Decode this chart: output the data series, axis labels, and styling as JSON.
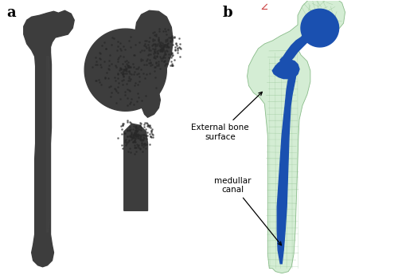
{
  "bg_color": "#ffffff",
  "label_a": "a",
  "label_b": "b",
  "label_fontsize": 13,
  "annotation1_text": "External bone\nsurface",
  "annotation2_text": "medullar\ncanal",
  "bone_dark_color": "#3d3d3d",
  "implant_blue": "#1a50b0",
  "bone_green_fill": "#d4edd4",
  "bone_green_edge": "#88bb88",
  "fig_width": 5.0,
  "fig_height": 3.5,
  "dpi": 100
}
